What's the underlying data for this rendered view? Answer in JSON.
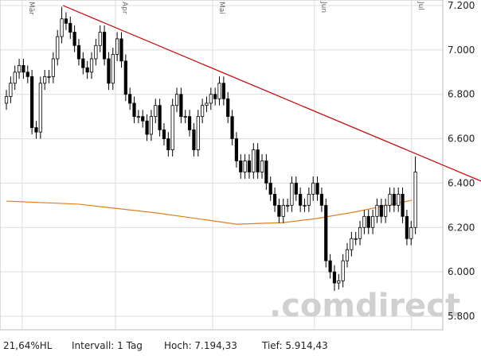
{
  "chart_data": {
    "type": "candlestick",
    "xlim": [
      -1.5,
      111.4
    ],
    "xticks": [
      {
        "value": 3.7,
        "label": "Mär"
      },
      {
        "value": 25.6,
        "label": "Apr"
      },
      {
        "value": 48.4,
        "label": "Mai"
      },
      {
        "value": 72.3,
        "label": "Jun"
      },
      {
        "value": 95.1,
        "label": "Jul"
      }
    ],
    "ylim": [
      5800,
      7200
    ],
    "yticks": [
      {
        "value": 5800,
        "label": "5.800"
      },
      {
        "value": 6000,
        "label": "6.000"
      },
      {
        "value": 6200,
        "label": "6.200"
      },
      {
        "value": 6400,
        "label": "6.400"
      },
      {
        "value": 6600,
        "label": "6.600"
      },
      {
        "value": 6800,
        "label": "6.800"
      },
      {
        "value": 7000,
        "label": "7.000"
      },
      {
        "value": 7200,
        "label": "7.200"
      }
    ],
    "grid": true,
    "up_color": "#ffffff",
    "down_color": "#000000",
    "open": [
      6760,
      6790,
      6850,
      6900,
      6930,
      6900,
      6880,
      6650,
      6630,
      6850,
      6880,
      6880,
      6960,
      7060,
      7140,
      7120,
      7080,
      7020,
      6960,
      6920,
      6900,
      6960,
      7020,
      7080,
      6960,
      6850,
      6980,
      7050,
      6950,
      6800,
      6760,
      6700,
      6700,
      6680,
      6620,
      6700,
      6750,
      6640,
      6600,
      6550,
      6750,
      6800,
      6700,
      6700,
      6640,
      6550,
      6700,
      6750,
      6760,
      6800,
      6780,
      6850,
      6780,
      6700,
      6600,
      6500,
      6450,
      6500,
      6450,
      6550,
      6450,
      6500,
      6400,
      6350,
      6300,
      6250,
      6300,
      6300,
      6400,
      6350,
      6300,
      6300,
      6350,
      6400,
      6350,
      6300,
      6050,
      6000,
      5950,
      5960,
      6050,
      6100,
      6150,
      6150,
      6200,
      6250,
      6200,
      6250,
      6300,
      6250,
      6300,
      6350,
      6300,
      6350,
      6250,
      6150,
      6200
    ],
    "high": [
      6820,
      6880,
      6930,
      6960,
      6960,
      6930,
      6910,
      6680,
      6880,
      6910,
      6910,
      6990,
      7090,
      7194.33,
      7170,
      7150,
      7110,
      7050,
      6990,
      6950,
      6990,
      7050,
      7110,
      7110,
      6990,
      7010,
      7080,
      7080,
      6980,
      6830,
      6790,
      6730,
      6730,
      6710,
      6730,
      6780,
      6780,
      6670,
      6630,
      6780,
      6830,
      6830,
      6730,
      6730,
      6670,
      6730,
      6780,
      6790,
      6830,
      6830,
      6880,
      6880,
      6810,
      6730,
      6630,
      6530,
      6530,
      6530,
      6580,
      6580,
      6530,
      6530,
      6430,
      6380,
      6330,
      6330,
      6330,
      6430,
      6430,
      6380,
      6330,
      6380,
      6430,
      6430,
      6380,
      6330,
      6080,
      6030,
      5990,
      6080,
      6130,
      6180,
      6180,
      6230,
      6280,
      6280,
      6280,
      6330,
      6330,
      6330,
      6380,
      6380,
      6380,
      6380,
      6280,
      6230,
      6520
    ],
    "low": [
      6730,
      6760,
      6820,
      6870,
      6870,
      6850,
      6620,
      6600,
      6600,
      6820,
      6850,
      6850,
      6930,
      7030,
      7090,
      7050,
      6990,
      6930,
      6890,
      6870,
      6870,
      6930,
      6990,
      6930,
      6820,
      6820,
      6950,
      6920,
      6770,
      6730,
      6670,
      6670,
      6650,
      6590,
      6590,
      6670,
      6610,
      6570,
      6520,
      6520,
      6720,
      6670,
      6670,
      6610,
      6520,
      6520,
      6670,
      6720,
      6730,
      6750,
      6750,
      6750,
      6670,
      6570,
      6470,
      6420,
      6420,
      6420,
      6420,
      6420,
      6420,
      6370,
      6320,
      6270,
      6220,
      6220,
      6270,
      6270,
      6320,
      6270,
      6270,
      6270,
      6320,
      6320,
      6270,
      6020,
      5970,
      5914.43,
      5920,
      5930,
      6020,
      6070,
      6120,
      6120,
      6170,
      6170,
      6170,
      6220,
      6220,
      6220,
      6270,
      6270,
      6270,
      6220,
      6120,
      6120,
      6170
    ],
    "close": [
      6790,
      6850,
      6900,
      6930,
      6900,
      6880,
      6650,
      6630,
      6850,
      6880,
      6880,
      6960,
      7060,
      7140,
      7120,
      7080,
      7020,
      6960,
      6920,
      6900,
      6960,
      7020,
      7080,
      6960,
      6850,
      6980,
      7050,
      6950,
      6800,
      6760,
      6700,
      6700,
      6680,
      6620,
      6700,
      6750,
      6640,
      6600,
      6550,
      6750,
      6800,
      6700,
      6700,
      6640,
      6550,
      6700,
      6750,
      6760,
      6800,
      6780,
      6850,
      6780,
      6700,
      6600,
      6500,
      6450,
      6500,
      6450,
      6550,
      6450,
      6500,
      6400,
      6350,
      6300,
      6250,
      6300,
      6300,
      6400,
      6350,
      6300,
      6300,
      6350,
      6400,
      6350,
      6300,
      6050,
      6000,
      5950,
      5960,
      6050,
      6100,
      6150,
      6150,
      6200,
      6250,
      6200,
      6250,
      6300,
      6250,
      6300,
      6350,
      6300,
      6350,
      6250,
      6150,
      6200,
      6450
    ],
    "lines": [
      {
        "color": "#cc0000",
        "x": [
          13.3,
          111.4
        ],
        "values": [
          7200,
          6409
        ]
      },
      {
        "color": "#e0801e",
        "x": [
          0,
          17,
          35.5,
          54,
          65,
          72.6,
          81.8,
          95.2
        ],
        "values": [
          6319,
          6305,
          6265,
          6215,
          6222,
          6240,
          6270,
          6323
        ]
      }
    ],
    "watermark": ".comdirect",
    "footer": [
      "21,64%HL",
      "Intervall: 1 Tag",
      "Hoch: 7.194,33",
      "Tief: 5.914,43"
    ]
  }
}
